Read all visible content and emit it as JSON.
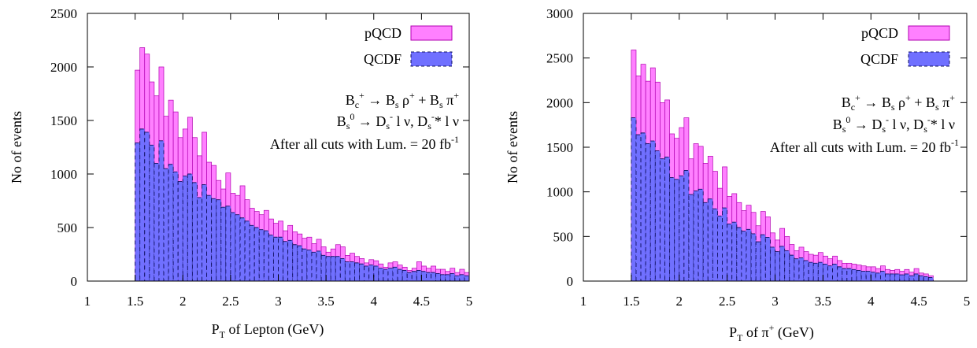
{
  "colors": {
    "pqcd_fill": "#ff80ff",
    "pqcd_stroke": "#b000b0",
    "qcdf_fill": "#7070ff",
    "qcdf_stroke": "#101060"
  },
  "chart_data": [
    {
      "type": "bar",
      "xlabel_main": "P",
      "xlabel_sub": "T",
      "xlabel_rest": " of Lepton (GeV)",
      "ylabel": "No of events",
      "xlim": [
        1,
        5
      ],
      "ylim": [
        0,
        2500
      ],
      "xticks": [
        "1",
        "1.5",
        "2",
        "2.5",
        "3",
        "3.5",
        "4",
        "4.5",
        "5"
      ],
      "yticks": [
        "0",
        "500",
        "1000",
        "1500",
        "2000",
        "2500"
      ],
      "legend": [
        "pQCD",
        "QCDF"
      ],
      "annotation": [
        "B_c^+ → B_s ρ^+ + B_s π^+",
        "B_s^0 → D_s^- l ν, D_s^-* l ν",
        "After all cuts with Lum. = 20 fb^-1"
      ],
      "bin_start": 1.5,
      "bin_width": 0.05,
      "series": [
        {
          "name": "pQCD",
          "values": [
            1970,
            2180,
            2120,
            1860,
            1730,
            2000,
            1540,
            1690,
            1580,
            1340,
            1420,
            1530,
            1340,
            1170,
            1390,
            1110,
            1080,
            940,
            860,
            1010,
            820,
            800,
            890,
            760,
            680,
            650,
            620,
            660,
            580,
            540,
            560,
            470,
            520,
            460,
            440,
            400,
            410,
            350,
            390,
            320,
            270,
            300,
            340,
            320,
            240,
            260,
            230,
            210,
            170,
            200,
            190,
            160,
            130,
            170,
            180,
            150,
            130,
            100,
            120,
            180,
            140,
            120,
            140,
            110,
            110,
            90,
            120,
            80,
            110,
            80
          ]
        },
        {
          "name": "QCDF",
          "values": [
            1290,
            1420,
            1390,
            1270,
            1100,
            1310,
            1050,
            1090,
            1020,
            930,
            980,
            1000,
            920,
            780,
            900,
            800,
            770,
            760,
            690,
            700,
            640,
            620,
            590,
            560,
            520,
            500,
            480,
            470,
            430,
            410,
            410,
            370,
            380,
            340,
            330,
            300,
            290,
            270,
            280,
            240,
            230,
            230,
            230,
            210,
            180,
            180,
            170,
            160,
            140,
            150,
            140,
            120,
            110,
            120,
            130,
            110,
            100,
            80,
            90,
            100,
            90,
            80,
            80,
            70,
            60,
            60,
            70,
            50,
            60,
            50
          ]
        }
      ]
    },
    {
      "type": "bar",
      "xlabel_main": "P",
      "xlabel_sub": "T",
      "xlabel_rest": " of π",
      "xlabel_sup": "+",
      "xlabel_end": " (GeV)",
      "ylabel": "No of events",
      "xlim": [
        1,
        5
      ],
      "ylim": [
        0,
        3000
      ],
      "xticks": [
        "1",
        "1.5",
        "2",
        "2.5",
        "3",
        "3.5",
        "4",
        "4.5",
        "5"
      ],
      "yticks": [
        "0",
        "500",
        "1000",
        "1500",
        "2000",
        "2500",
        "3000"
      ],
      "legend": [
        "pQCD",
        "QCDF"
      ],
      "annotation": [
        "B_c^+ → B_s ρ^+ + B_s π^+",
        "B_s^0 → D_s^- l ν, D_s^-* l ν",
        "After all cuts with Lum. = 20 fb^-1"
      ],
      "bin_start": 1.5,
      "bin_width": 0.05,
      "series": [
        {
          "name": "pQCD",
          "values": [
            2590,
            2300,
            2430,
            2240,
            2390,
            2230,
            2000,
            2030,
            1650,
            1600,
            1720,
            1830,
            1370,
            1540,
            1510,
            1320,
            1400,
            1230,
            1040,
            1280,
            950,
            980,
            880,
            790,
            850,
            770,
            620,
            780,
            720,
            540,
            460,
            590,
            500,
            410,
            340,
            380,
            330,
            300,
            290,
            320,
            280,
            250,
            280,
            230,
            200,
            200,
            190,
            180,
            170,
            160,
            160,
            140,
            170,
            130,
            120,
            130,
            110,
            130,
            100,
            140,
            90,
            80,
            60
          ]
        },
        {
          "name": "QCDF",
          "values": [
            1830,
            1640,
            1660,
            1540,
            1570,
            1460,
            1370,
            1390,
            1160,
            1140,
            1180,
            1240,
            970,
            1010,
            1030,
            880,
            920,
            810,
            730,
            820,
            640,
            660,
            600,
            560,
            580,
            530,
            440,
            520,
            490,
            380,
            330,
            390,
            340,
            290,
            250,
            260,
            230,
            210,
            200,
            210,
            190,
            170,
            190,
            160,
            140,
            140,
            130,
            120,
            110,
            110,
            100,
            90,
            110,
            80,
            80,
            80,
            70,
            80,
            60,
            80,
            60,
            50,
            40
          ]
        }
      ]
    }
  ]
}
